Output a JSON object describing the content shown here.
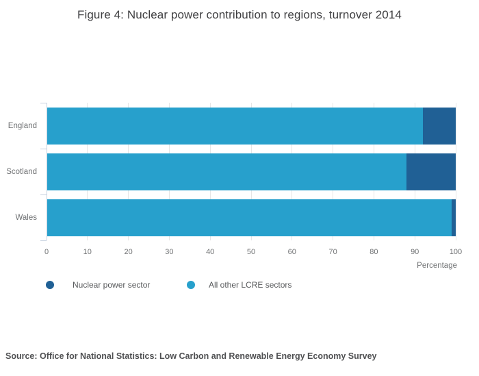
{
  "title": "Figure 4: Nuclear power contribution to regions, turnover 2014",
  "source": "Source: Office for National Statistics: Low Carbon and Renewable Energy Economy Survey",
  "chart_data": {
    "type": "bar",
    "orientation": "horizontal",
    "stacked": true,
    "title": "Figure 4: Nuclear power contribution to regions, turnover 2014",
    "categories": [
      "England",
      "Scotland",
      "Wales"
    ],
    "series": [
      {
        "name": "Nuclear power sector",
        "color": "#206095",
        "values": [
          8,
          12,
          1
        ]
      },
      {
        "name": "All other LCRE sectors",
        "color": "#27A0CC",
        "values": [
          92,
          88,
          99
        ]
      }
    ],
    "xlabel": "Percentage",
    "ylabel": "",
    "xlim": [
      0,
      100
    ],
    "xticks": [
      0,
      10,
      20,
      30,
      40,
      50,
      60,
      70,
      80,
      90,
      100
    ],
    "grid": true,
    "legend_position": "bottom"
  }
}
